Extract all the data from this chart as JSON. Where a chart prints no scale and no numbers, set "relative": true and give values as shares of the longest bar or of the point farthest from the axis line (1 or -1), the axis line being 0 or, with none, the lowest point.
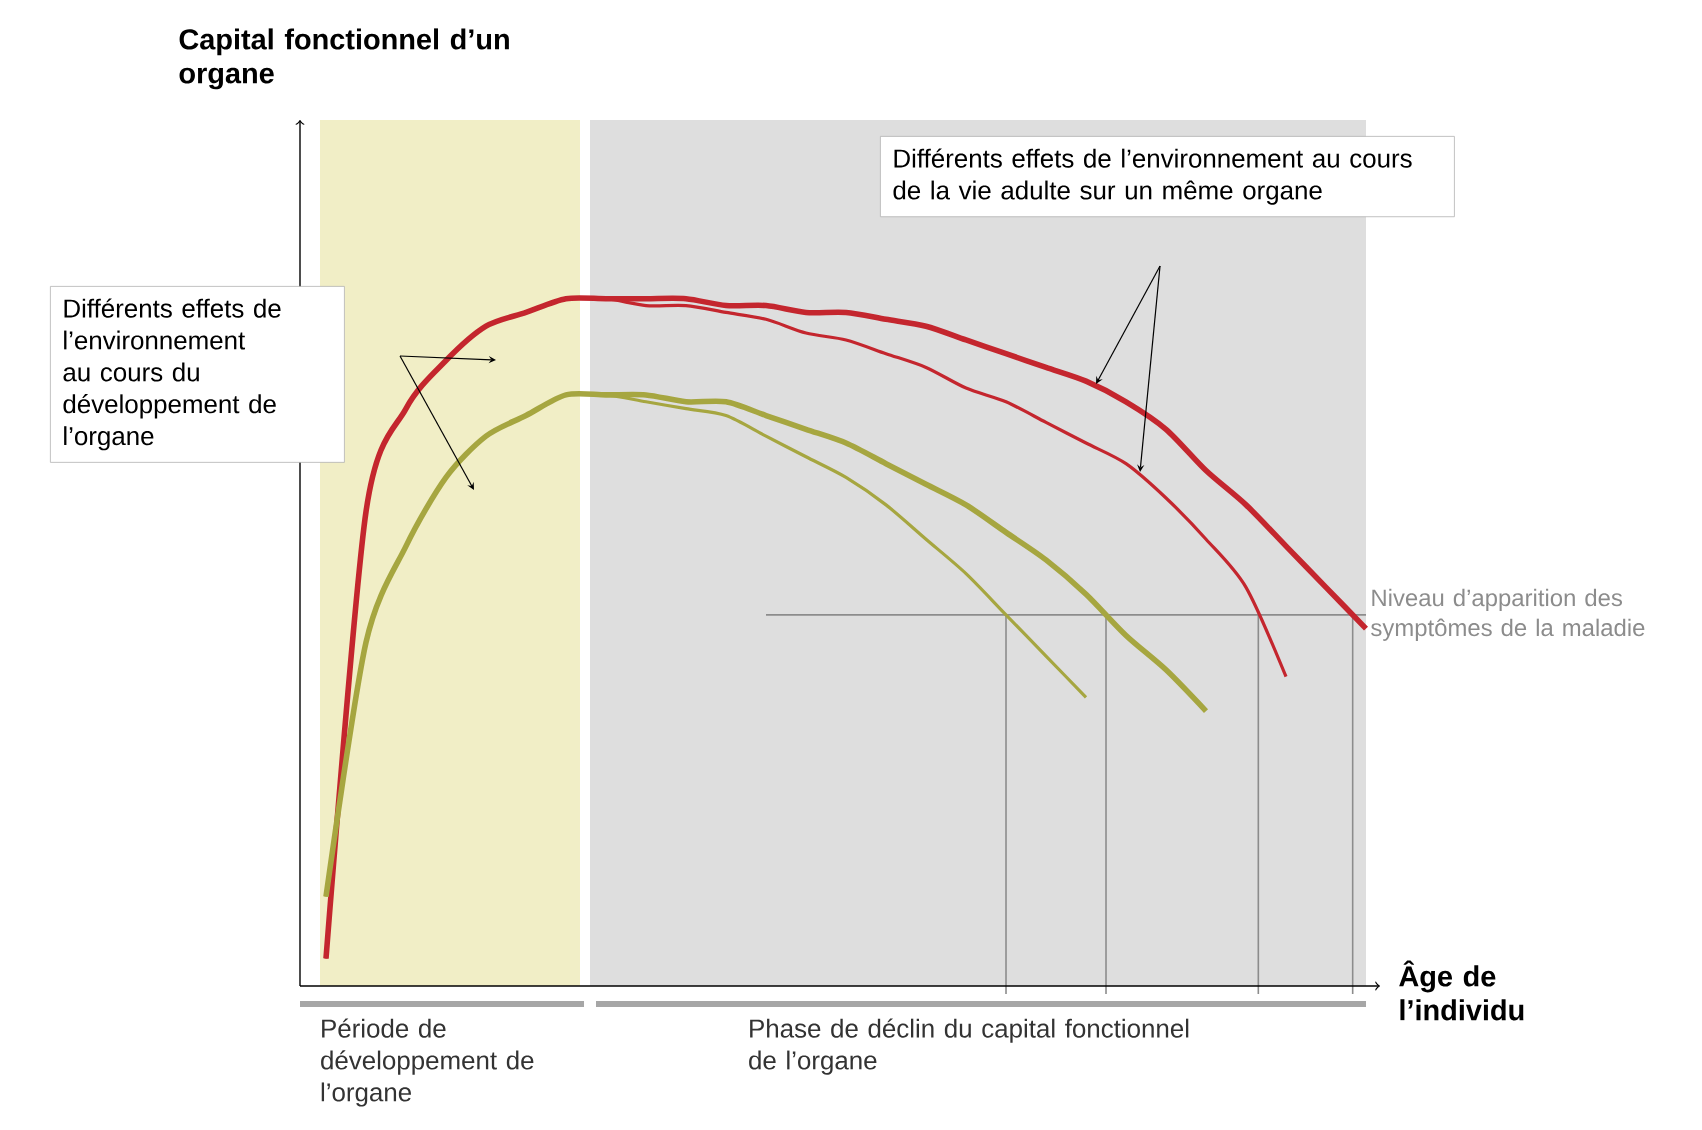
{
  "chart_data": {
    "type": "line",
    "relative": true,
    "categories": [
      null,
      null,
      null,
      null,
      null,
      null,
      null,
      null,
      null,
      null,
      null,
      null,
      null,
      null,
      null,
      null,
      null,
      null,
      null,
      null,
      null,
      null,
      null,
      null,
      null,
      null,
      null
    ],
    "xlabel": "Âge de l’individu",
    "series": [
      {
        "color": "#c4262e",
        "values": [
          0.04,
          0.69,
          0.84,
          0.91,
          0.96,
          0.98,
          1.0,
          1.0,
          1.0,
          1.0,
          0.99,
          0.99,
          0.98,
          0.98,
          0.97,
          0.96,
          0.94,
          0.92,
          0.9,
          0.88,
          0.85,
          0.81,
          0.75,
          0.7,
          0.64,
          0.58,
          0.52
        ]
      },
      {
        "color": "#c4262e",
        "values": [
          0.04,
          0.69,
          0.84,
          0.91,
          0.96,
          0.98,
          1.0,
          1.0,
          0.99,
          0.99,
          0.98,
          0.97,
          0.95,
          0.94,
          0.92,
          0.9,
          0.87,
          0.85,
          0.82,
          0.79,
          0.76,
          0.71,
          0.65,
          0.58,
          0.45,
          null,
          null
        ]
      },
      {
        "color": "#a6a640",
        "values": [
          0.13,
          0.5,
          0.64,
          0.74,
          0.8,
          0.83,
          0.86,
          0.86,
          0.86,
          0.85,
          0.85,
          0.83,
          0.81,
          0.79,
          0.76,
          0.73,
          0.7,
          0.66,
          0.62,
          0.57,
          0.51,
          0.46,
          0.4,
          null,
          null,
          null,
          null
        ]
      },
      {
        "color": "#a6a640",
        "values": [
          0.13,
          0.5,
          0.64,
          0.74,
          0.8,
          0.83,
          0.86,
          0.86,
          0.85,
          0.84,
          0.83,
          0.8,
          0.77,
          0.74,
          0.7,
          0.65,
          0.6,
          0.54,
          0.48,
          0.42,
          null,
          null,
          null,
          null,
          null,
          null,
          null
        ]
      }
    ],
    "ref_lines": [
      {
        "axis": "y",
        "value": 0.54,
        "label": "Niveau d’apparition des symptômes de la maladie",
        "color": "#8c8c8c"
      }
    ],
    "annotations": [
      "Différents effets de l’environnement au cours du développement de l’organe",
      "Différents effets de l’environnement au cours de la vie adulte sur un même organe",
      "Période de développement de l’organe",
      "Phase de déclin du capital fonctionnel de l’organe",
      "Capital fonctionnel d’un organe"
    ]
  }
}
